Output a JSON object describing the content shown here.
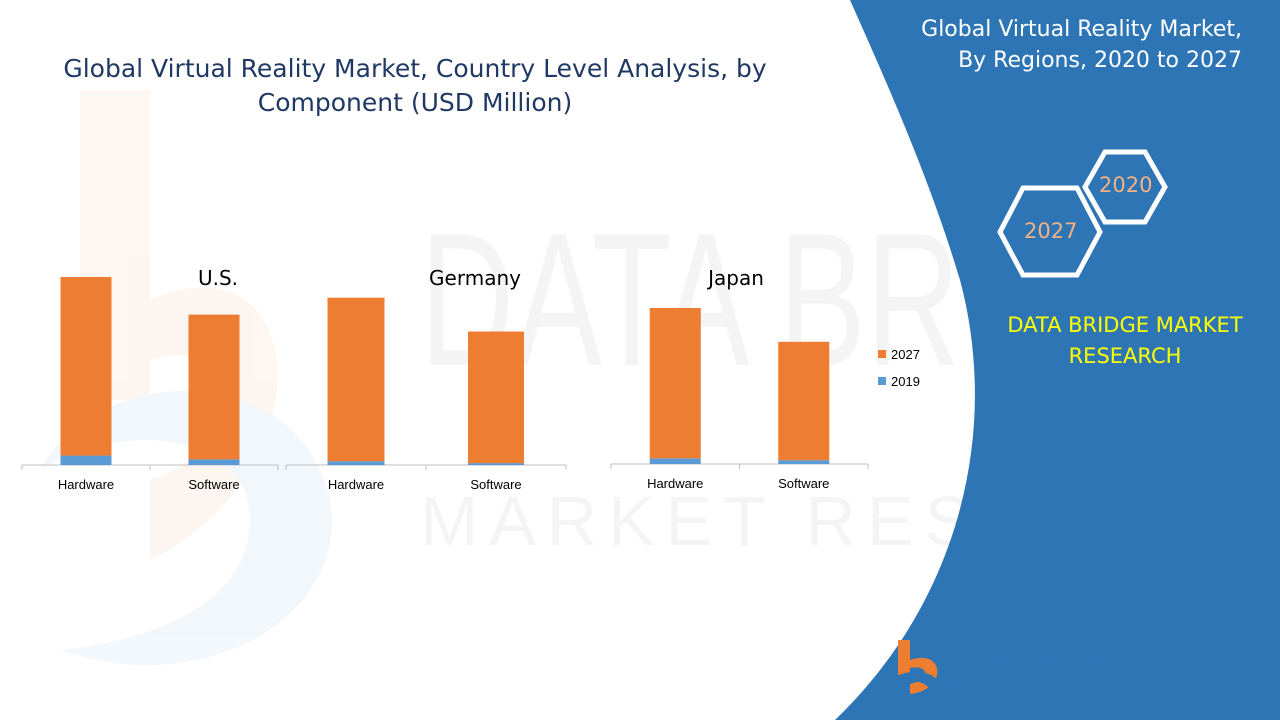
{
  "title": "Global Virtual Reality Market, Country Level Analysis, by Component (USD Million)",
  "side_panel": {
    "title_line1": "Global Virtual Reality Market,",
    "title_line2": "By Regions, 2020 to 2027",
    "hex_year_a": "2020",
    "hex_year_b": "2027",
    "brand_line1": "DATA BRIDGE MARKET",
    "brand_line2": "RESEARCH",
    "logo_name": "DATA BRIDGE",
    "logo_subtitle": "MARKET RESEARCH"
  },
  "colors": {
    "series_2027": "#ed7d31",
    "series_2019": "#5b9bd5",
    "panel_blue": "#2e75b6",
    "brand_yellow": "#ffff00",
    "hex_text": "#f4b183"
  },
  "chart_data": [
    {
      "type": "bar",
      "stacked": true,
      "title": "U.S.",
      "categories": [
        "Hardware",
        "Software"
      ],
      "series": [
        {
          "name": "2019",
          "values": [
            5,
            3
          ]
        },
        {
          "name": "2027",
          "values": [
            95,
            77
          ]
        }
      ],
      "ylim": [
        0,
        100
      ],
      "grid": false
    },
    {
      "type": "bar",
      "stacked": true,
      "title": "Germany",
      "categories": [
        "Hardware",
        "Software"
      ],
      "series": [
        {
          "name": "2019",
          "values": [
            2,
            1
          ]
        },
        {
          "name": "2027",
          "values": [
            87,
            70
          ]
        }
      ],
      "ylim": [
        0,
        100
      ],
      "grid": false
    },
    {
      "type": "bar",
      "stacked": true,
      "title": "Japan",
      "categories": [
        "Hardware",
        "Software"
      ],
      "series": [
        {
          "name": "2019",
          "values": [
            3,
            2
          ]
        },
        {
          "name": "2027",
          "values": [
            80,
            63
          ]
        }
      ],
      "ylim": [
        0,
        100
      ],
      "grid": false
    }
  ],
  "legend": {
    "placement": "right",
    "entries": [
      "2027",
      "2019"
    ]
  }
}
